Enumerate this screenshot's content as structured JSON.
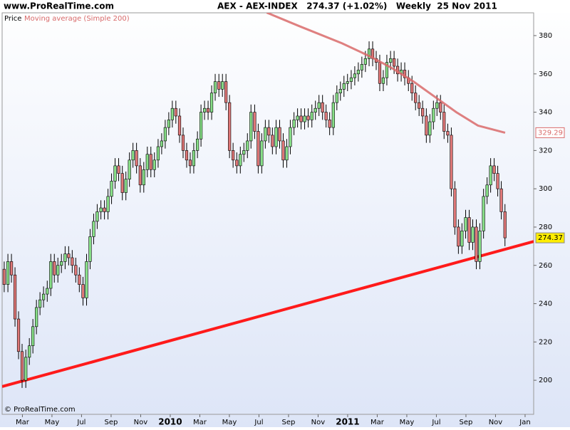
{
  "header": {
    "site": "www.ProRealTime.com",
    "title": "AEX - AEX-INDEX   274.37 (+1.02%)   Weekly  25 Nov 2011"
  },
  "footer": {
    "copyright": "© ProRealTime.com"
  },
  "chart_data": {
    "type": "candlestick",
    "grid": false,
    "xlim": [
      0.63,
      36.58
    ],
    "ylim": [
      182.2,
      391.9
    ],
    "yticks": [
      200,
      220,
      240,
      260,
      280,
      300,
      320,
      340,
      360,
      380
    ],
    "xticks": [
      {
        "value": 2,
        "label": "Mar"
      },
      {
        "value": 4,
        "label": "May"
      },
      {
        "value": 6,
        "label": "Jul"
      },
      {
        "value": 8,
        "label": "Sep"
      },
      {
        "value": 10,
        "label": "Nov"
      },
      {
        "value": 12,
        "label": "2010"
      },
      {
        "value": 14,
        "label": "Mar"
      },
      {
        "value": 16,
        "label": "May"
      },
      {
        "value": 18,
        "label": "Jul"
      },
      {
        "value": 20,
        "label": "Sep"
      },
      {
        "value": 22,
        "label": "Nov"
      },
      {
        "value": 24,
        "label": "2011"
      },
      {
        "value": 26,
        "label": "Mar"
      },
      {
        "value": 28,
        "label": "May"
      },
      {
        "value": 30,
        "label": "Jul"
      },
      {
        "value": 32,
        "label": "Sep"
      },
      {
        "value": 34,
        "label": "Nov"
      },
      {
        "value": 36,
        "label": "Jan"
      }
    ],
    "series": [
      {
        "name": "Price",
        "up_color": "#88e088",
        "down_color": "#e07878",
        "x": [
          0.77,
          1.02,
          1.26,
          1.5,
          1.74,
          1.98,
          2.23,
          2.47,
          2.71,
          2.95,
          3.19,
          3.43,
          3.68,
          3.92,
          4.16,
          4.4,
          4.64,
          4.89,
          5.13,
          5.37,
          5.61,
          5.85,
          6.1,
          6.34,
          6.58,
          6.82,
          7.06,
          7.31,
          7.55,
          7.79,
          8.03,
          8.27,
          8.51,
          8.76,
          9.0,
          9.24,
          9.48,
          9.72,
          9.97,
          10.21,
          10.45,
          10.69,
          10.93,
          11.18,
          11.42,
          11.66,
          11.9,
          12.14,
          12.38,
          12.63,
          12.87,
          13.11,
          13.35,
          13.59,
          13.84,
          14.08,
          14.32,
          14.56,
          14.8,
          15.04,
          15.29,
          15.53,
          15.77,
          16.01,
          16.25,
          16.5,
          16.74,
          16.98,
          17.22,
          17.46,
          17.71,
          17.95,
          18.19,
          18.43,
          18.67,
          18.91,
          19.16,
          19.4,
          19.64,
          19.88,
          20.12,
          20.37,
          20.61,
          20.85,
          21.09,
          21.33,
          21.58,
          21.82,
          22.06,
          22.3,
          22.54,
          22.78,
          23.03,
          23.27,
          23.51,
          23.75,
          23.99,
          24.24,
          24.48,
          24.72,
          24.96,
          25.2,
          25.45,
          25.69,
          25.93,
          26.17,
          26.41,
          26.65,
          26.9,
          27.14,
          27.38,
          27.62,
          27.86,
          28.11,
          28.35,
          28.59,
          28.83,
          29.07,
          29.32,
          29.56,
          29.8,
          30.04,
          30.28,
          30.52,
          30.77,
          31.01,
          31.25,
          31.49,
          31.73,
          31.98,
          32.22,
          32.46,
          32.7,
          32.94,
          33.19,
          33.43,
          33.67,
          33.91,
          34.15,
          34.39,
          34.64
        ],
        "open": [
          258,
          250,
          262,
          255,
          232,
          215,
          200,
          212,
          218,
          228,
          238,
          242,
          245,
          248,
          262,
          255,
          260,
          262,
          266,
          264,
          260,
          255,
          250,
          243,
          262,
          275,
          283,
          288,
          290,
          288,
          296,
          304,
          312,
          308,
          298,
          305,
          315,
          320,
          312,
          302,
          310,
          318,
          310,
          315,
          322,
          325,
          332,
          336,
          342,
          338,
          328,
          320,
          315,
          312,
          320,
          326,
          340,
          342,
          340,
          350,
          356,
          352,
          356,
          345,
          320,
          315,
          312,
          318,
          320,
          325,
          340,
          330,
          312,
          325,
          332,
          328,
          322,
          332,
          325,
          315,
          322,
          332,
          336,
          338,
          335,
          338,
          336,
          340,
          342,
          345,
          340,
          336,
          332,
          345,
          350,
          352,
          355,
          356,
          358,
          360,
          362,
          365,
          368,
          373,
          368,
          366,
          355,
          358,
          366,
          368,
          364,
          360,
          362,
          358,
          355,
          350,
          345,
          342,
          338,
          328,
          335,
          342,
          345,
          340,
          330,
          328,
          300,
          280,
          270,
          278,
          285,
          272,
          280,
          262,
          278,
          296,
          302,
          312,
          308,
          300,
          288
        ],
        "high": [
          262,
          266,
          266,
          259,
          236,
          219,
          216,
          222,
          232,
          242,
          246,
          249,
          252,
          266,
          266,
          264,
          266,
          270,
          270,
          268,
          264,
          259,
          254,
          266,
          279,
          287,
          292,
          294,
          294,
          300,
          308,
          316,
          316,
          312,
          309,
          319,
          324,
          324,
          316,
          314,
          322,
          322,
          319,
          326,
          329,
          336,
          340,
          346,
          346,
          342,
          332,
          324,
          319,
          324,
          330,
          344,
          346,
          346,
          354,
          360,
          360,
          360,
          360,
          349,
          324,
          319,
          322,
          324,
          329,
          344,
          344,
          334,
          329,
          336,
          336,
          332,
          336,
          336,
          329,
          326,
          336,
          340,
          342,
          342,
          342,
          342,
          344,
          346,
          349,
          349,
          344,
          340,
          349,
          354,
          356,
          359,
          360,
          362,
          364,
          366,
          369,
          372,
          377,
          377,
          372,
          370,
          362,
          370,
          372,
          372,
          368,
          366,
          366,
          362,
          359,
          354,
          349,
          346,
          342,
          339,
          346,
          349,
          349,
          344,
          334,
          332,
          304,
          284,
          282,
          289,
          289,
          284,
          284,
          282,
          300,
          306,
          316,
          316,
          312,
          304,
          292
        ],
        "low": [
          246,
          246,
          251,
          228,
          211,
          196,
          196,
          208,
          214,
          224,
          234,
          238,
          241,
          244,
          251,
          251,
          256,
          258,
          260,
          256,
          251,
          246,
          239,
          239,
          258,
          271,
          279,
          284,
          284,
          284,
          292,
          300,
          304,
          294,
          294,
          301,
          311,
          308,
          298,
          298,
          306,
          306,
          306,
          311,
          318,
          321,
          328,
          332,
          334,
          324,
          316,
          311,
          308,
          308,
          316,
          322,
          336,
          336,
          336,
          346,
          348,
          348,
          341,
          316,
          311,
          308,
          308,
          314,
          316,
          321,
          326,
          308,
          308,
          321,
          324,
          318,
          318,
          321,
          311,
          311,
          318,
          328,
          332,
          331,
          331,
          332,
          332,
          336,
          338,
          336,
          332,
          328,
          328,
          341,
          346,
          348,
          351,
          352,
          354,
          356,
          358,
          361,
          364,
          364,
          362,
          351,
          351,
          354,
          362,
          360,
          356,
          356,
          354,
          351,
          346,
          341,
          338,
          334,
          324,
          324,
          331,
          338,
          336,
          326,
          324,
          296,
          276,
          266,
          266,
          274,
          268,
          268,
          258,
          258,
          274,
          292,
          298,
          304,
          296,
          284,
          270
        ],
        "close": [
          250,
          262,
          255,
          232,
          215,
          200,
          212,
          218,
          228,
          238,
          242,
          245,
          248,
          262,
          255,
          260,
          262,
          266,
          264,
          260,
          255,
          250,
          243,
          262,
          275,
          283,
          288,
          290,
          288,
          296,
          304,
          312,
          308,
          298,
          305,
          315,
          320,
          312,
          302,
          310,
          318,
          310,
          315,
          322,
          325,
          332,
          336,
          342,
          338,
          328,
          320,
          315,
          312,
          320,
          326,
          340,
          342,
          340,
          350,
          356,
          352,
          356,
          345,
          320,
          315,
          312,
          318,
          320,
          325,
          340,
          330,
          312,
          325,
          332,
          328,
          322,
          332,
          325,
          315,
          322,
          332,
          336,
          338,
          335,
          338,
          336,
          340,
          342,
          345,
          340,
          336,
          332,
          345,
          350,
          352,
          355,
          356,
          358,
          360,
          362,
          365,
          368,
          373,
          368,
          366,
          355,
          358,
          366,
          368,
          364,
          360,
          362,
          358,
          355,
          350,
          345,
          342,
          338,
          328,
          335,
          342,
          345,
          340,
          330,
          328,
          300,
          280,
          270,
          278,
          285,
          272,
          280,
          262,
          278,
          296,
          302,
          312,
          308,
          300,
          288,
          274.37
        ]
      },
      {
        "name": "Moving average (Simple 200)",
        "color": "#d96a6a",
        "x": [
          18.53,
          20.71,
          23.61,
          25.55,
          27.0,
          28.45,
          29.9,
          31.35,
          32.81,
          34.65
        ],
        "values": [
          392,
          385,
          376,
          369,
          363,
          356,
          348,
          340,
          333,
          329.29
        ]
      }
    ],
    "trendline": {
      "color": "#ff1a1a",
      "x": [
        0.63,
        36.58
      ],
      "values": [
        196.7,
        272.5
      ]
    }
  }
}
